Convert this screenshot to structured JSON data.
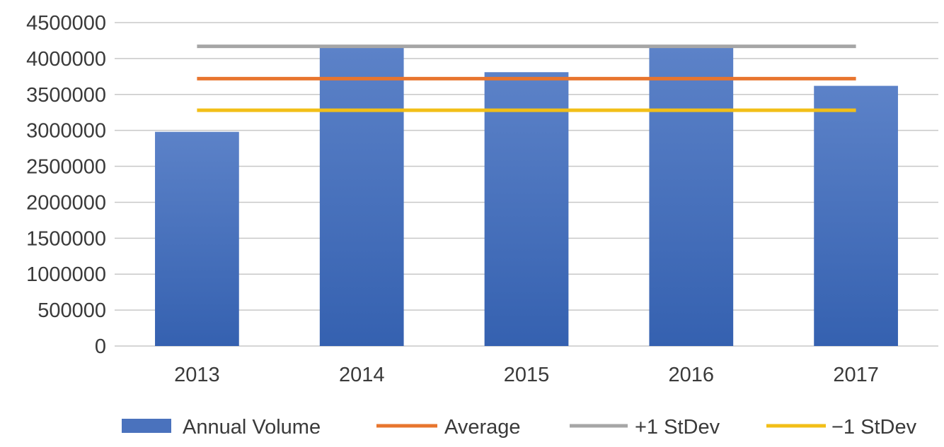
{
  "chart_data": {
    "type": "bar",
    "categories": [
      "2013",
      "2014",
      "2015",
      "2016",
      "2017"
    ],
    "series": [
      {
        "name": "Annual Volume",
        "kind": "bar",
        "values": [
          2980000,
          4150000,
          3810000,
          4150000,
          3620000
        ],
        "color": "#4a72bd"
      },
      {
        "name": "Average",
        "kind": "line",
        "values": [
          3720000,
          3720000,
          3720000,
          3720000,
          3720000
        ],
        "color": "#e8752e"
      },
      {
        "name": "+1 StDev",
        "kind": "line",
        "values": [
          4170000,
          4170000,
          4170000,
          4170000,
          4170000
        ],
        "color": "#a6a6a6"
      },
      {
        "name": "−1 StDev",
        "kind": "line",
        "values": [
          3280000,
          3280000,
          3280000,
          3280000,
          3280000
        ],
        "color": "#f2bf18"
      }
    ],
    "yticks": [
      "0",
      "500000",
      "1000000",
      "1500000",
      "2000000",
      "2500000",
      "3000000",
      "3500000",
      "4000000",
      "4500000"
    ],
    "ylim": [
      0,
      4500000
    ],
    "grid": true,
    "legend_position": "bottom",
    "title": "",
    "xlabel": "",
    "ylabel": ""
  }
}
